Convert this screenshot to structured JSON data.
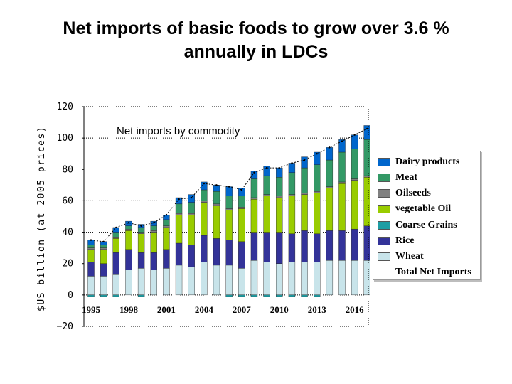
{
  "title_line1": "Net imports of basic foods to grow over 3.6 %",
  "title_line2": "annually in LDCs",
  "chart_data": {
    "type": "bar",
    "stacked": true,
    "ylabel": "$US billion (at 2005 prices)",
    "ylim": [
      -20,
      120
    ],
    "yticks": [
      "120",
      "100",
      "80",
      "60",
      "40",
      "20",
      "0",
      "−20"
    ],
    "x_tick_labels": [
      "1995",
      "1998",
      "2001",
      "2004",
      "2007",
      "2010",
      "2013",
      "2016"
    ],
    "annotation": "Net imports by commodity",
    "grid": "dotted at 40, 60 and 100",
    "legend_position": "right",
    "categories": [
      "1995",
      "1996",
      "1997",
      "1998",
      "1999",
      "2000",
      "2001",
      "2002",
      "2003",
      "2004",
      "2005",
      "2006",
      "2007",
      "2008",
      "2009",
      "2010",
      "2011",
      "2012",
      "2013",
      "2014",
      "2015",
      "2016",
      "2017"
    ],
    "series": [
      {
        "name": "Wheat",
        "color": "#c8e4ea",
        "values": [
          12,
          12,
          13,
          16,
          17,
          16,
          17,
          19,
          18,
          21,
          19,
          19,
          17,
          22,
          21,
          20,
          21,
          21,
          21,
          22,
          22,
          22,
          22
        ]
      },
      {
        "name": "Coarse Grains",
        "color": "#1e9ea4",
        "values": [
          -1,
          -1,
          -1,
          0,
          -1,
          0,
          0,
          0,
          0,
          0,
          0,
          -1,
          -1,
          -1,
          -1,
          -1,
          -1,
          -1,
          -1,
          0,
          0,
          0,
          0
        ]
      },
      {
        "name": "Rice",
        "color": "#333399",
        "values": [
          9,
          8,
          14,
          13,
          10,
          11,
          12,
          14,
          14,
          17,
          17,
          16,
          17,
          18,
          19,
          20,
          18,
          20,
          18,
          19,
          19,
          20,
          22
        ]
      },
      {
        "name": "vegetable Oil",
        "color": "#99cc00",
        "values": [
          8,
          9,
          9,
          12,
          12,
          13,
          14,
          18,
          19,
          21,
          21,
          19,
          21,
          21,
          23,
          22,
          24,
          23,
          26,
          27,
          30,
          31,
          31
        ]
      },
      {
        "name": "Oilseeds",
        "color": "#808080",
        "values": [
          1,
          1,
          1,
          1,
          1,
          1,
          1,
          1,
          1,
          1,
          1,
          1,
          1,
          1,
          1,
          1,
          1,
          1,
          1,
          1,
          1,
          1,
          1
        ]
      },
      {
        "name": "Meat",
        "color": "#339966",
        "values": [
          2,
          2,
          3,
          2,
          3,
          3,
          4,
          6,
          7,
          7,
          8,
          8,
          7,
          12,
          12,
          12,
          14,
          16,
          17,
          17,
          19,
          19,
          23
        ]
      },
      {
        "name": "Dairy products",
        "color": "#0066cc",
        "values": [
          3,
          2,
          3,
          3,
          2,
          3,
          3,
          4,
          5,
          5,
          4,
          6,
          5,
          5,
          6,
          6,
          6,
          7,
          8,
          8,
          8,
          9,
          9
        ]
      }
    ],
    "total_net_imports": {
      "name": "Total Net Imports",
      "values": [
        35,
        34,
        43,
        46,
        44,
        46,
        51,
        61,
        62,
        71,
        70,
        69,
        67,
        78,
        81,
        81,
        84,
        86,
        90,
        94,
        98,
        102,
        106
      ]
    }
  }
}
